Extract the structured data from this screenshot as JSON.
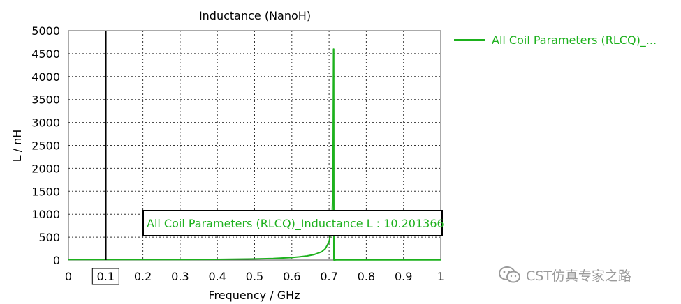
{
  "chart_data": {
    "type": "line",
    "title": "Inductance (NanoH)",
    "xlabel": "Frequency / GHz",
    "ylabel": "L / nH",
    "xlim": [
      0,
      1
    ],
    "ylim": [
      0,
      5000
    ],
    "x_ticks": [
      "0",
      "0.1",
      "0.2",
      "0.3",
      "0.4",
      "0.5",
      "0.6",
      "0.7",
      "0.8",
      "0.9",
      "1"
    ],
    "y_ticks": [
      "0",
      "500",
      "1000",
      "1500",
      "2000",
      "2500",
      "3000",
      "3500",
      "4000",
      "4500",
      "5000"
    ],
    "grid": true,
    "legend_position": "right",
    "marker_x": 0.1,
    "marker_label": "0.1",
    "series": [
      {
        "name": "All Coil Parameters (RLCQ)_...",
        "color": "#1db11d",
        "x": [
          0,
          0.1,
          0.2,
          0.3,
          0.4,
          0.5,
          0.55,
          0.6,
          0.62,
          0.64,
          0.66,
          0.68,
          0.69,
          0.7,
          0.705,
          0.708,
          0.71,
          0.711,
          0.712,
          0.7125,
          0.713,
          0.72,
          0.8,
          0.9,
          1
        ],
        "y": [
          10,
          10.2,
          11,
          12,
          15,
          25,
          35,
          55,
          70,
          90,
          120,
          180,
          250,
          400,
          600,
          900,
          1500,
          2500,
          4600,
          4600,
          0,
          5,
          5,
          5,
          5
        ]
      }
    ],
    "annotation": "All Coil Parameters (RLCQ)_Inductance L : 10.201366"
  },
  "watermark": {
    "icon": "wechat-icon",
    "text": "CST仿真专家之路"
  }
}
